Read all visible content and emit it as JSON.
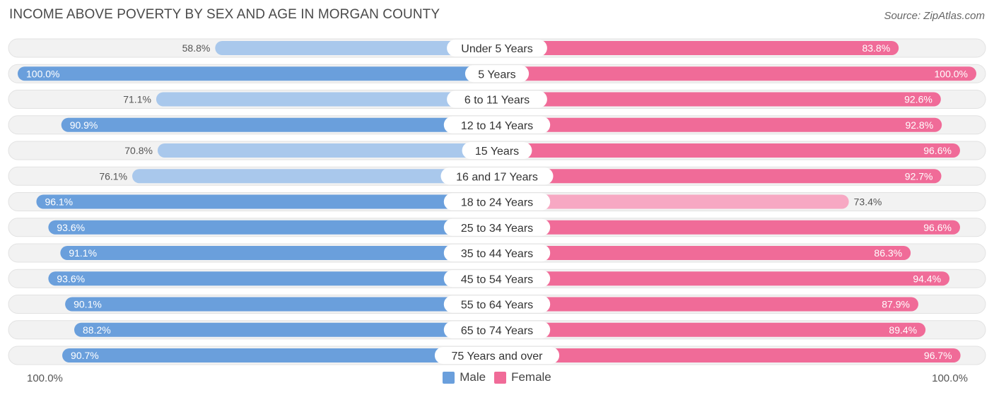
{
  "chart_data": {
    "type": "bar",
    "orientation": "horizontal-diverging",
    "title": "INCOME ABOVE POVERTY BY SEX AND AGE IN MORGAN COUNTY",
    "source": "Source: ZipAtlas.com",
    "categories": [
      "Under 5 Years",
      "5 Years",
      "6 to 11 Years",
      "12 to 14 Years",
      "15 Years",
      "16 and 17 Years",
      "18 to 24 Years",
      "25 to 34 Years",
      "35 to 44 Years",
      "45 to 54 Years",
      "55 to 64 Years",
      "65 to 74 Years",
      "75 Years and over"
    ],
    "series": [
      {
        "name": "Male",
        "color": "#6a9fdc",
        "color_light": "#a9c8ec",
        "values": [
          58.8,
          100.0,
          71.1,
          90.9,
          70.8,
          76.1,
          96.1,
          93.6,
          91.1,
          93.6,
          90.1,
          88.2,
          90.7
        ],
        "labels": [
          "58.8%",
          "100.0%",
          "71.1%",
          "90.9%",
          "70.8%",
          "76.1%",
          "96.1%",
          "93.6%",
          "91.1%",
          "93.6%",
          "90.1%",
          "88.2%",
          "90.7%"
        ]
      },
      {
        "name": "Female",
        "color": "#f06b98",
        "color_light": "#f7a8c3",
        "values": [
          83.8,
          100.0,
          92.6,
          92.8,
          96.6,
          92.7,
          73.4,
          96.6,
          86.3,
          94.4,
          87.9,
          89.4,
          96.7
        ],
        "labels": [
          "83.8%",
          "100.0%",
          "92.6%",
          "92.8%",
          "96.6%",
          "92.7%",
          "73.4%",
          "96.6%",
          "86.3%",
          "94.4%",
          "87.9%",
          "89.4%",
          "96.7%"
        ]
      }
    ],
    "xlim": [
      0,
      100
    ],
    "axis_left_label": "100.0%",
    "axis_right_label": "100.0%",
    "legend": [
      "Male",
      "Female"
    ],
    "legend_position": "bottom-center"
  }
}
